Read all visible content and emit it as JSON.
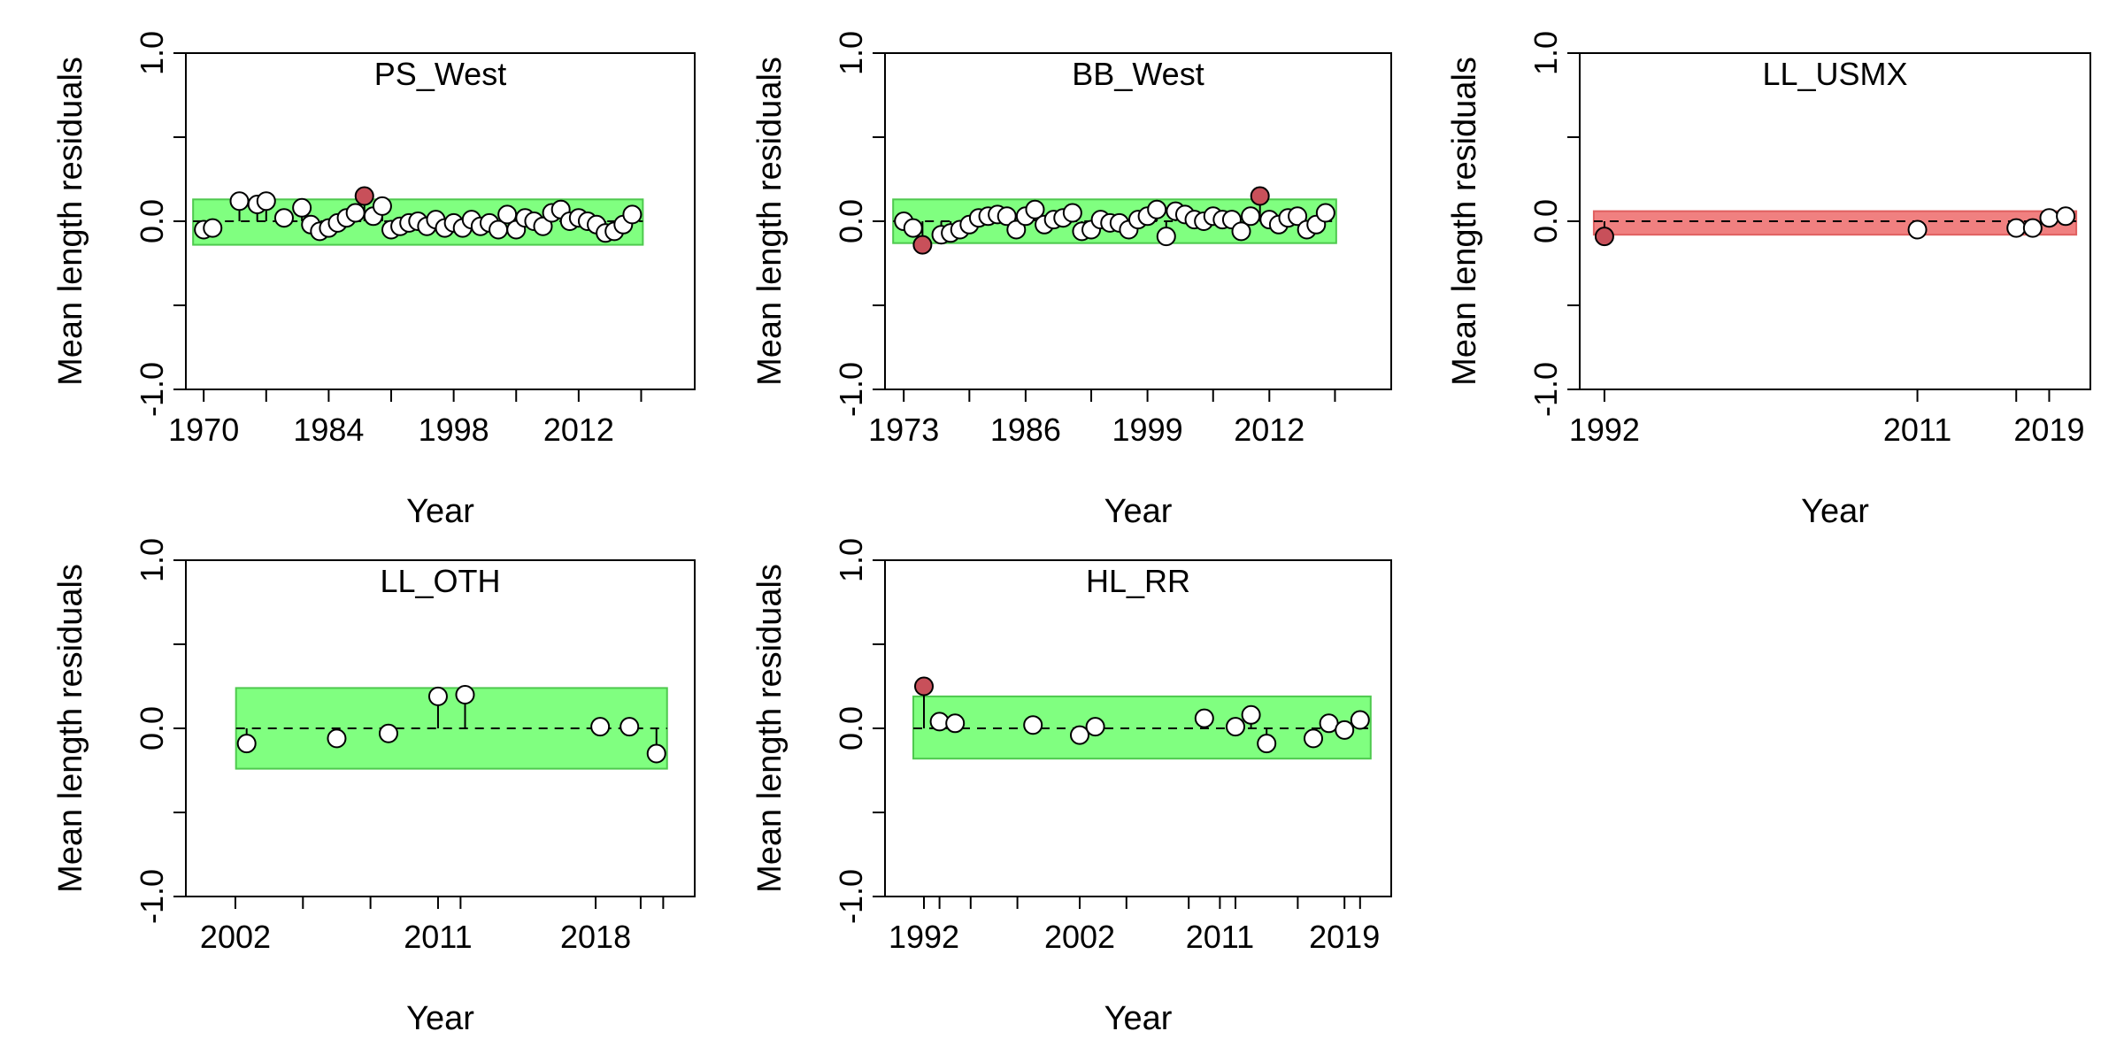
{
  "chart_data": [
    {
      "type": "scatter",
      "title": "PS_West",
      "xlabel": "Year",
      "ylabel": "Mean length residuals",
      "xlim": [
        1968,
        2025
      ],
      "ylim": [
        -1.0,
        1.0
      ],
      "yticks": [
        -1.0,
        -0.5,
        0.0,
        0.5,
        1.0
      ],
      "ytick_labels": [
        "-1.0",
        "",
        "0.0",
        "",
        "1.0"
      ],
      "xticks": [
        1970,
        1977,
        1984,
        1991,
        1998,
        2005,
        2012,
        2019
      ],
      "xtick_labels": [
        "1970",
        "",
        "1984",
        "",
        "1998",
        "",
        "2012",
        ""
      ],
      "band": {
        "lower": -0.14,
        "upper": 0.13,
        "color": "#80ff80"
      },
      "point_color_default": "#ffffff",
      "point_color_outlier": "#c8505a",
      "points": [
        {
          "x": 1970,
          "y": -0.05
        },
        {
          "x": 1971,
          "y": -0.04
        },
        {
          "x": 1974,
          "y": 0.12
        },
        {
          "x": 1976,
          "y": 0.1
        },
        {
          "x": 1977,
          "y": 0.12
        },
        {
          "x": 1979,
          "y": 0.02
        },
        {
          "x": 1981,
          "y": 0.08
        },
        {
          "x": 1982,
          "y": -0.02
        },
        {
          "x": 1983,
          "y": -0.06
        },
        {
          "x": 1984,
          "y": -0.04
        },
        {
          "x": 1985,
          "y": -0.01
        },
        {
          "x": 1986,
          "y": 0.02
        },
        {
          "x": 1987,
          "y": 0.05
        },
        {
          "x": 1988,
          "y": 0.15,
          "outlier": true
        },
        {
          "x": 1989,
          "y": 0.03
        },
        {
          "x": 1990,
          "y": 0.09
        },
        {
          "x": 1991,
          "y": -0.05
        },
        {
          "x": 1992,
          "y": -0.03
        },
        {
          "x": 1993,
          "y": -0.01
        },
        {
          "x": 1994,
          "y": 0.0
        },
        {
          "x": 1995,
          "y": -0.03
        },
        {
          "x": 1996,
          "y": 0.01
        },
        {
          "x": 1997,
          "y": -0.04
        },
        {
          "x": 1998,
          "y": -0.01
        },
        {
          "x": 1999,
          "y": -0.04
        },
        {
          "x": 2000,
          "y": 0.01
        },
        {
          "x": 2001,
          "y": -0.03
        },
        {
          "x": 2002,
          "y": -0.01
        },
        {
          "x": 2003,
          "y": -0.05
        },
        {
          "x": 2004,
          "y": 0.04
        },
        {
          "x": 2005,
          "y": -0.05
        },
        {
          "x": 2006,
          "y": 0.02
        },
        {
          "x": 2007,
          "y": 0.0
        },
        {
          "x": 2008,
          "y": -0.03
        },
        {
          "x": 2009,
          "y": 0.05
        },
        {
          "x": 2010,
          "y": 0.07
        },
        {
          "x": 2011,
          "y": 0.0
        },
        {
          "x": 2012,
          "y": 0.02
        },
        {
          "x": 2013,
          "y": 0.0
        },
        {
          "x": 2014,
          "y": -0.02
        },
        {
          "x": 2015,
          "y": -0.07
        },
        {
          "x": 2016,
          "y": -0.06
        },
        {
          "x": 2017,
          "y": -0.02
        },
        {
          "x": 2018,
          "y": 0.04
        }
      ]
    },
    {
      "type": "scatter",
      "title": "BB_West",
      "xlabel": "Year",
      "ylabel": "Mean length residuals",
      "xlim": [
        1971,
        2025
      ],
      "ylim": [
        -1.0,
        1.0
      ],
      "yticks": [
        -1.0,
        -0.5,
        0.0,
        0.5,
        1.0
      ],
      "ytick_labels": [
        "-1.0",
        "",
        "0.0",
        "",
        "1.0"
      ],
      "xticks": [
        1973,
        1980,
        1986,
        1993,
        1999,
        2006,
        2012,
        2019
      ],
      "xtick_labels": [
        "1973",
        "",
        "1986",
        "",
        "1999",
        "",
        "2012",
        ""
      ],
      "band": {
        "lower": -0.13,
        "upper": 0.13,
        "color": "#80ff80"
      },
      "point_color_default": "#ffffff",
      "point_color_outlier": "#c8505a",
      "points": [
        {
          "x": 1973,
          "y": 0.0
        },
        {
          "x": 1974,
          "y": -0.04
        },
        {
          "x": 1975,
          "y": -0.14,
          "outlier": true
        },
        {
          "x": 1977,
          "y": -0.08
        },
        {
          "x": 1978,
          "y": -0.07
        },
        {
          "x": 1979,
          "y": -0.05
        },
        {
          "x": 1980,
          "y": -0.02
        },
        {
          "x": 1981,
          "y": 0.02
        },
        {
          "x": 1982,
          "y": 0.03
        },
        {
          "x": 1983,
          "y": 0.04
        },
        {
          "x": 1984,
          "y": 0.03
        },
        {
          "x": 1985,
          "y": -0.05
        },
        {
          "x": 1986,
          "y": 0.03
        },
        {
          "x": 1987,
          "y": 0.07
        },
        {
          "x": 1988,
          "y": -0.02
        },
        {
          "x": 1989,
          "y": 0.01
        },
        {
          "x": 1990,
          "y": 0.02
        },
        {
          "x": 1991,
          "y": 0.05
        },
        {
          "x": 1992,
          "y": -0.06
        },
        {
          "x": 1993,
          "y": -0.05
        },
        {
          "x": 1994,
          "y": 0.01
        },
        {
          "x": 1995,
          "y": -0.01
        },
        {
          "x": 1996,
          "y": -0.01
        },
        {
          "x": 1997,
          "y": -0.05
        },
        {
          "x": 1998,
          "y": 0.01
        },
        {
          "x": 1999,
          "y": 0.03
        },
        {
          "x": 2000,
          "y": 0.07
        },
        {
          "x": 2001,
          "y": -0.09
        },
        {
          "x": 2002,
          "y": 0.06
        },
        {
          "x": 2003,
          "y": 0.04
        },
        {
          "x": 2004,
          "y": 0.01
        },
        {
          "x": 2005,
          "y": 0.0
        },
        {
          "x": 2006,
          "y": 0.03
        },
        {
          "x": 2007,
          "y": 0.01
        },
        {
          "x": 2008,
          "y": 0.01
        },
        {
          "x": 2009,
          "y": -0.06
        },
        {
          "x": 2010,
          "y": 0.03
        },
        {
          "x": 2011,
          "y": 0.15,
          "outlier": true
        },
        {
          "x": 2012,
          "y": 0.01
        },
        {
          "x": 2013,
          "y": -0.02
        },
        {
          "x": 2014,
          "y": 0.02
        },
        {
          "x": 2015,
          "y": 0.03
        },
        {
          "x": 2016,
          "y": -0.05
        },
        {
          "x": 2017,
          "y": -0.02
        },
        {
          "x": 2018,
          "y": 0.05
        }
      ]
    },
    {
      "type": "scatter",
      "title": "LL_USMX",
      "xlabel": "Year",
      "ylabel": "Mean length residuals",
      "xlim": [
        1990.5,
        2021.5
      ],
      "ylim": [
        -1.0,
        1.0
      ],
      "yticks": [
        -1.0,
        -0.5,
        0.0,
        0.5,
        1.0
      ],
      "ytick_labels": [
        "-1.0",
        "",
        "0.0",
        "",
        "1.0"
      ],
      "xticks": [
        1992,
        2011,
        2017,
        2019
      ],
      "xtick_labels": [
        "1992",
        "2011",
        "",
        "2019"
      ],
      "band": {
        "lower": -0.08,
        "upper": 0.06,
        "color": "#f08080"
      },
      "point_color_default": "#ffffff",
      "point_color_outlier": "#c8505a",
      "points": [
        {
          "x": 1992,
          "y": -0.09,
          "outlier": true
        },
        {
          "x": 2011,
          "y": -0.05
        },
        {
          "x": 2017,
          "y": -0.04
        },
        {
          "x": 2018,
          "y": -0.04
        },
        {
          "x": 2019,
          "y": 0.02
        },
        {
          "x": 2020,
          "y": 0.03
        }
      ]
    },
    {
      "type": "scatter",
      "title": "LL_OTH",
      "xlabel": "Year",
      "ylabel": "Mean length residuals",
      "xlim": [
        1999.8,
        2022.4
      ],
      "ylim": [
        -1.0,
        1.0
      ],
      "yticks": [
        -1.0,
        -0.5,
        0.0,
        0.5,
        1.0
      ],
      "ytick_labels": [
        "-1.0",
        "",
        "0.0",
        "",
        "1.0"
      ],
      "xticks": [
        2002,
        2011,
        2018
      ],
      "xtick_labels": [
        "2002",
        "2011",
        "2018"
      ],
      "xminor": [
        2005,
        2008,
        2012,
        2020,
        2021
      ],
      "band": {
        "lower": -0.24,
        "upper": 0.24,
        "color": "#80ff80"
      },
      "point_color_default": "#ffffff",
      "point_color_outlier": "#c8505a",
      "points": [
        {
          "x": 2002.5,
          "y": -0.09
        },
        {
          "x": 2006.5,
          "y": -0.06
        },
        {
          "x": 2008.8,
          "y": -0.03
        },
        {
          "x": 2011,
          "y": 0.19
        },
        {
          "x": 2012.2,
          "y": 0.2
        },
        {
          "x": 2018.2,
          "y": 0.01
        },
        {
          "x": 2019.5,
          "y": 0.01
        },
        {
          "x": 2020.7,
          "y": -0.15
        }
      ]
    },
    {
      "type": "scatter",
      "title": "HL_RR",
      "xlabel": "Year",
      "ylabel": "Mean length residuals",
      "xlim": [
        1989.5,
        2022
      ],
      "ylim": [
        -1.0,
        1.0
      ],
      "yticks": [
        -1.0,
        -0.5,
        0.0,
        0.5,
        1.0
      ],
      "ytick_labels": [
        "-1.0",
        "",
        "0.0",
        "",
        "1.0"
      ],
      "xticks": [
        1992,
        2002,
        2011,
        2019
      ],
      "xtick_labels": [
        "1992",
        "2002",
        "2011",
        "2019"
      ],
      "xminor": [
        1993,
        1995,
        1998,
        2005,
        2009,
        2012,
        2016,
        2020
      ],
      "band": {
        "lower": -0.18,
        "upper": 0.19,
        "color": "#80ff80"
      },
      "point_color_default": "#ffffff",
      "point_color_outlier": "#c8505a",
      "points": [
        {
          "x": 1992,
          "y": 0.25,
          "outlier": true
        },
        {
          "x": 1993,
          "y": 0.04
        },
        {
          "x": 1994,
          "y": 0.03
        },
        {
          "x": 1999,
          "y": 0.02
        },
        {
          "x": 2002,
          "y": -0.04
        },
        {
          "x": 2003,
          "y": 0.01
        },
        {
          "x": 2010,
          "y": 0.06
        },
        {
          "x": 2012,
          "y": 0.01
        },
        {
          "x": 2013,
          "y": 0.08
        },
        {
          "x": 2014,
          "y": -0.09
        },
        {
          "x": 2017,
          "y": -0.06
        },
        {
          "x": 2018,
          "y": 0.03
        },
        {
          "x": 2019,
          "y": -0.01
        },
        {
          "x": 2020,
          "y": 0.05
        }
      ]
    }
  ]
}
